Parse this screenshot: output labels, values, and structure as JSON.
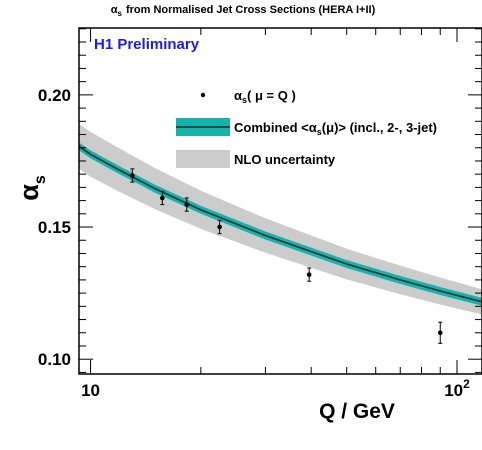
{
  "chart_data": {
    "type": "line",
    "title": "from Normalised Jet Cross Sections (HERA I+II)",
    "title_symbol": "α",
    "title_symbol_sub": "s",
    "label": "H1 Preliminary",
    "xlabel": "Q / GeV",
    "ylabel_symbol": "α",
    "ylabel_sub": "s",
    "xscale": "log",
    "xlim": [
      9.3,
      117
    ],
    "ylim": [
      0.0944,
      0.2253
    ],
    "x_ticks": [
      {
        "value": 10,
        "label": "10"
      },
      {
        "value": 100,
        "label": "10",
        "exp": "2"
      }
    ],
    "y_ticks": [
      {
        "value": 0.1,
        "label": "0.10"
      },
      {
        "value": 0.15,
        "label": "0.15"
      },
      {
        "value": 0.2,
        "label": "0.20"
      }
    ],
    "points": {
      "name_symbol": "α",
      "name_sub": "s",
      "name_rest": "( μ = Q )",
      "x": [
        13.0,
        15.7,
        18.3,
        22.5,
        39.5,
        90.0
      ],
      "y": [
        0.1695,
        0.161,
        0.1585,
        0.15,
        0.132,
        0.11
      ],
      "err": [
        0.0025,
        0.0025,
        0.0025,
        0.0025,
        0.0025,
        0.004
      ]
    },
    "combined": {
      "name": "Combined <αs(μ)> (incl., 2-, 3-jet)",
      "name_pre": "Combined <",
      "name_symbol": "α",
      "name_sub": "s",
      "name_rest": "(μ)> (incl., 2-, 3-jet)",
      "color": "#17b3ab",
      "line_color": "#003333",
      "x": [
        9.3,
        10,
        12,
        15,
        20,
        30,
        50,
        70,
        90,
        117
      ],
      "y": [
        0.1805,
        0.1775,
        0.1715,
        0.1645,
        0.1565,
        0.1468,
        0.136,
        0.13,
        0.1258,
        0.1217
      ],
      "band": 0.0015
    },
    "nlo": {
      "name": "NLO uncertainty",
      "color": "#cccccc",
      "band_lo": [
        0.0085,
        0.0085,
        0.0082,
        0.0078,
        0.0072,
        0.0065,
        0.0058,
        0.0054,
        0.0051,
        0.0048
      ],
      "band_hi": [
        0.0085,
        0.0085,
        0.0082,
        0.0078,
        0.0072,
        0.0065,
        0.0058,
        0.0054,
        0.0051,
        0.0048
      ]
    },
    "grid": false,
    "legend_placement": "top-right",
    "colors": {
      "label": "#1a1aff",
      "frame": "#000000"
    }
  }
}
